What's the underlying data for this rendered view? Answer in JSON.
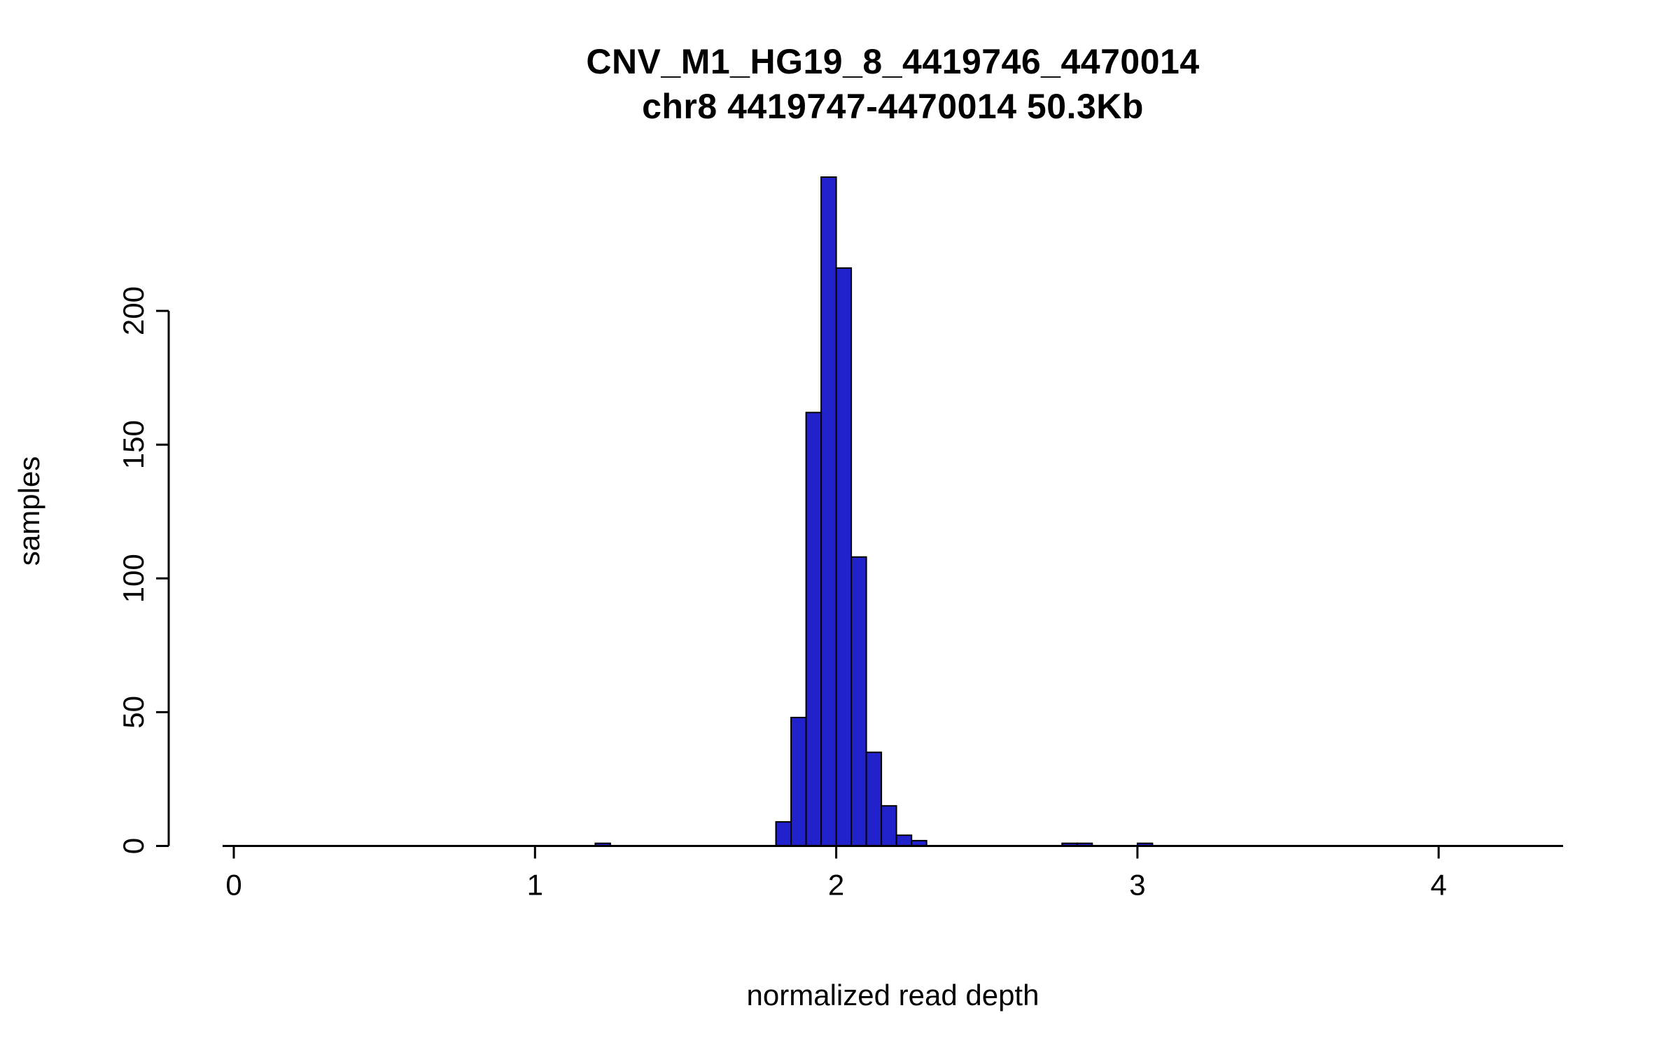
{
  "chart_data": {
    "type": "bar",
    "chart_kind": "histogram",
    "title": "CNV_M1_HG19_8_4419746_4470014",
    "subtitle": "chr8 4419747-4470014 50.3Kb",
    "xlabel": "normalized read depth",
    "ylabel": "samples",
    "bar_fill": "#2222CC",
    "bar_stroke": "#000000",
    "axis_color": "#000000",
    "bin_width": 0.05,
    "xlim": [
      0,
      4.4
    ],
    "ylim": [
      0,
      250
    ],
    "grid": "off",
    "legend": "none",
    "x_ticks": [
      "0",
      "1",
      "2",
      "3",
      "4"
    ],
    "x_tick_values": [
      0,
      1,
      2,
      3,
      4
    ],
    "y_ticks": [
      "0",
      "50",
      "100",
      "150",
      "200"
    ],
    "y_tick_values": [
      0,
      50,
      100,
      150,
      200
    ],
    "bins": [
      {
        "x0": 1.2,
        "x1": 1.25,
        "count": 1
      },
      {
        "x0": 1.8,
        "x1": 1.85,
        "count": 9
      },
      {
        "x0": 1.85,
        "x1": 1.9,
        "count": 48
      },
      {
        "x0": 1.9,
        "x1": 1.95,
        "count": 162
      },
      {
        "x0": 1.95,
        "x1": 2.0,
        "count": 250
      },
      {
        "x0": 2.0,
        "x1": 2.05,
        "count": 216
      },
      {
        "x0": 2.05,
        "x1": 2.1,
        "count": 108
      },
      {
        "x0": 2.1,
        "x1": 2.15,
        "count": 35
      },
      {
        "x0": 2.15,
        "x1": 2.2,
        "count": 15
      },
      {
        "x0": 2.2,
        "x1": 2.25,
        "count": 4
      },
      {
        "x0": 2.25,
        "x1": 2.3,
        "count": 2
      },
      {
        "x0": 2.75,
        "x1": 2.8,
        "count": 1
      },
      {
        "x0": 2.8,
        "x1": 2.85,
        "count": 1
      },
      {
        "x0": 3.0,
        "x1": 3.05,
        "count": 1
      }
    ]
  }
}
